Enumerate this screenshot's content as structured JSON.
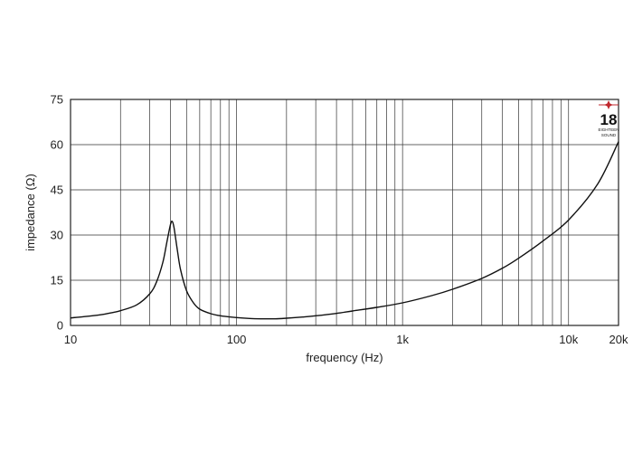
{
  "chart_data": {
    "type": "line",
    "xlabel": "frequency (Hz)",
    "ylabel": "impedance (Ω)",
    "x_scale": "log",
    "xlim": [
      10,
      20000
    ],
    "ylim": [
      0,
      75
    ],
    "grid": true,
    "x_tick_labels": [
      {
        "value": 10,
        "label": "10"
      },
      {
        "value": 100,
        "label": "100"
      },
      {
        "value": 1000,
        "label": "1k"
      },
      {
        "value": 10000,
        "label": "10k"
      },
      {
        "value": 20000,
        "label": "20k"
      }
    ],
    "y_tick_labels": [
      {
        "value": 0,
        "label": "0"
      },
      {
        "value": 15,
        "label": "15"
      },
      {
        "value": 30,
        "label": "30"
      },
      {
        "value": 45,
        "label": "45"
      },
      {
        "value": 60,
        "label": "60"
      },
      {
        "value": 75,
        "label": "75"
      }
    ],
    "series": [
      {
        "x": [
          10,
          12,
          15,
          18,
          20,
          25,
          30,
          33,
          36,
          38,
          40,
          41,
          42,
          44,
          46,
          50,
          55,
          60,
          70,
          80,
          100,
          120,
          140,
          170,
          200,
          250,
          300,
          400,
          500,
          700,
          1000,
          1500,
          2000,
          3000,
          4000,
          5000,
          7000,
          10000,
          15000,
          20000
        ],
        "y": [
          2.5,
          2.9,
          3.5,
          4.3,
          4.9,
          6.8,
          10.5,
          14.5,
          21.0,
          27.5,
          33.5,
          34.5,
          32.5,
          25.0,
          18.5,
          11.5,
          7.5,
          5.4,
          3.9,
          3.2,
          2.6,
          2.3,
          2.2,
          2.2,
          2.4,
          2.8,
          3.2,
          4.0,
          4.8,
          6.0,
          7.5,
          9.9,
          12.0,
          15.6,
          19.0,
          22.3,
          28.0,
          35.0,
          47.0,
          61.0
        ]
      }
    ]
  },
  "logo": {
    "text": "18",
    "subtext_1": "EIGHTEEN",
    "subtext_2": "SOUND",
    "accent_color": "#c0272d"
  }
}
